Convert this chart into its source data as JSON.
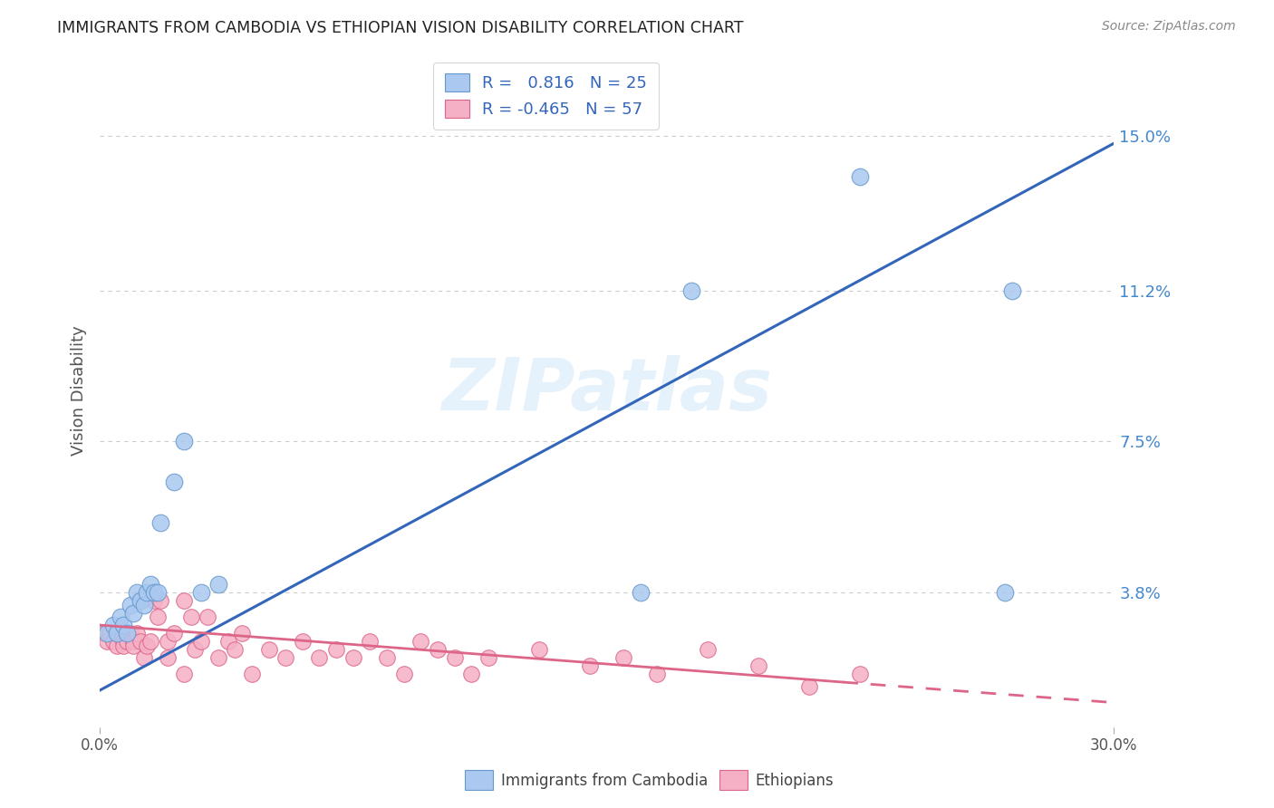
{
  "title": "IMMIGRANTS FROM CAMBODIA VS ETHIOPIAN VISION DISABILITY CORRELATION CHART",
  "source": "Source: ZipAtlas.com",
  "ylabel": "Vision Disability",
  "xlabel_ticks": [
    "0.0%",
    "30.0%"
  ],
  "ytick_labels": [
    "15.0%",
    "11.2%",
    "7.5%",
    "3.8%"
  ],
  "ytick_values": [
    0.15,
    0.112,
    0.075,
    0.038
  ],
  "xlim": [
    0.0,
    0.3
  ],
  "ylim": [
    0.005,
    0.17
  ],
  "watermark": "ZIPatlas",
  "cambodia_R": "0.816",
  "cambodia_N": "25",
  "ethiopia_R": "-0.465",
  "ethiopia_N": "57",
  "cambodia_color": "#aac8f0",
  "cambodia_edge_color": "#6699cc",
  "cambodia_line_color": "#3366bb",
  "ethiopia_color": "#f5b0c5",
  "ethiopia_edge_color": "#dd6688",
  "ethiopia_line_color": "#dd6688",
  "cambodia_points": [
    [
      0.002,
      0.028
    ],
    [
      0.004,
      0.03
    ],
    [
      0.005,
      0.028
    ],
    [
      0.006,
      0.032
    ],
    [
      0.007,
      0.03
    ],
    [
      0.008,
      0.028
    ],
    [
      0.009,
      0.035
    ],
    [
      0.01,
      0.033
    ],
    [
      0.011,
      0.038
    ],
    [
      0.012,
      0.036
    ],
    [
      0.013,
      0.035
    ],
    [
      0.014,
      0.038
    ],
    [
      0.015,
      0.04
    ],
    [
      0.016,
      0.038
    ],
    [
      0.017,
      0.038
    ],
    [
      0.018,
      0.055
    ],
    [
      0.022,
      0.065
    ],
    [
      0.025,
      0.075
    ],
    [
      0.03,
      0.038
    ],
    [
      0.035,
      0.04
    ],
    [
      0.16,
      0.038
    ],
    [
      0.175,
      0.112
    ],
    [
      0.225,
      0.14
    ],
    [
      0.27,
      0.112
    ],
    [
      0.268,
      0.038
    ]
  ],
  "ethiopia_points": [
    [
      0.001,
      0.028
    ],
    [
      0.002,
      0.026
    ],
    [
      0.003,
      0.028
    ],
    [
      0.004,
      0.026
    ],
    [
      0.005,
      0.025
    ],
    [
      0.005,
      0.028
    ],
    [
      0.006,
      0.028
    ],
    [
      0.007,
      0.026
    ],
    [
      0.007,
      0.025
    ],
    [
      0.008,
      0.026
    ],
    [
      0.009,
      0.028
    ],
    [
      0.01,
      0.026
    ],
    [
      0.01,
      0.025
    ],
    [
      0.011,
      0.028
    ],
    [
      0.012,
      0.026
    ],
    [
      0.013,
      0.022
    ],
    [
      0.014,
      0.025
    ],
    [
      0.015,
      0.026
    ],
    [
      0.016,
      0.036
    ],
    [
      0.017,
      0.032
    ],
    [
      0.018,
      0.036
    ],
    [
      0.02,
      0.026
    ],
    [
      0.02,
      0.022
    ],
    [
      0.022,
      0.028
    ],
    [
      0.025,
      0.036
    ],
    [
      0.025,
      0.018
    ],
    [
      0.027,
      0.032
    ],
    [
      0.028,
      0.024
    ],
    [
      0.03,
      0.026
    ],
    [
      0.032,
      0.032
    ],
    [
      0.035,
      0.022
    ],
    [
      0.038,
      0.026
    ],
    [
      0.04,
      0.024
    ],
    [
      0.042,
      0.028
    ],
    [
      0.045,
      0.018
    ],
    [
      0.05,
      0.024
    ],
    [
      0.055,
      0.022
    ],
    [
      0.06,
      0.026
    ],
    [
      0.065,
      0.022
    ],
    [
      0.07,
      0.024
    ],
    [
      0.075,
      0.022
    ],
    [
      0.08,
      0.026
    ],
    [
      0.085,
      0.022
    ],
    [
      0.09,
      0.018
    ],
    [
      0.095,
      0.026
    ],
    [
      0.1,
      0.024
    ],
    [
      0.105,
      0.022
    ],
    [
      0.11,
      0.018
    ],
    [
      0.115,
      0.022
    ],
    [
      0.13,
      0.024
    ],
    [
      0.145,
      0.02
    ],
    [
      0.155,
      0.022
    ],
    [
      0.165,
      0.018
    ],
    [
      0.18,
      0.024
    ],
    [
      0.195,
      0.02
    ],
    [
      0.21,
      0.015
    ],
    [
      0.225,
      0.018
    ]
  ],
  "cambodia_line": [
    [
      0.0,
      0.014
    ],
    [
      0.3,
      0.148
    ]
  ],
  "ethiopia_line_solid": [
    [
      0.0,
      0.03
    ],
    [
      0.22,
      0.016
    ]
  ],
  "ethiopia_line_dash": [
    [
      0.22,
      0.016
    ],
    [
      0.3,
      0.011
    ]
  ],
  "background_color": "#ffffff",
  "grid_color": "#cccccc",
  "title_color": "#222222",
  "axis_label_color": "#555555",
  "ytick_color": "#4488cc",
  "xtick_color": "#555555",
  "legend_text_color": "#000000",
  "legend_value_color": "#3366bb",
  "legend_pink_value_color": "#dd6688"
}
